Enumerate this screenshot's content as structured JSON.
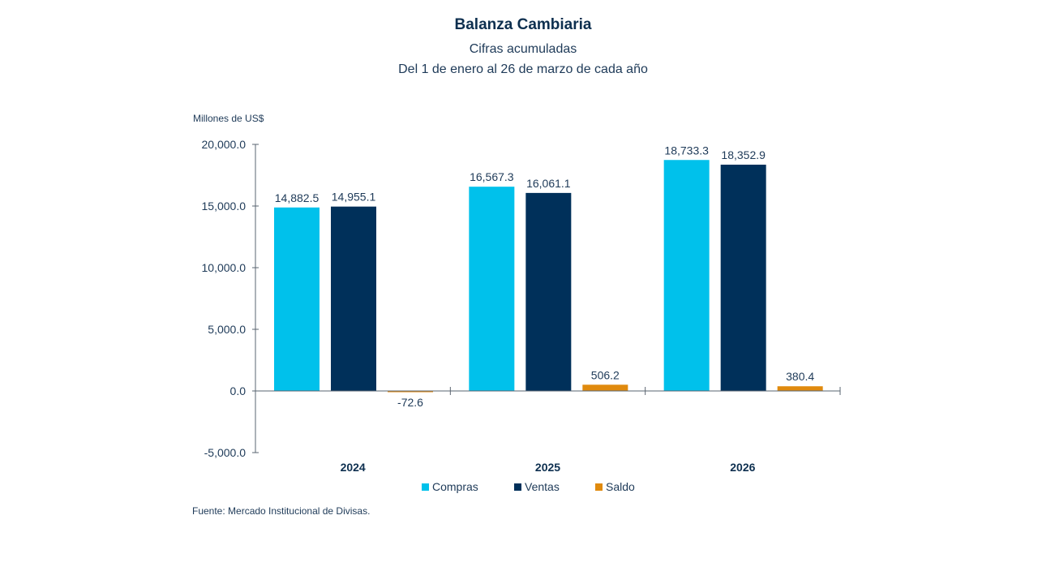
{
  "chart_data": {
    "type": "bar",
    "title": "Balanza Cambiaria",
    "subtitle": [
      "Cifras acumuladas",
      "Del 1 de enero al 26 de marzo de cada año"
    ],
    "ylabel": "Millones de US$",
    "xlabel": "",
    "categories": [
      "2024",
      "2025",
      "2026"
    ],
    "series": [
      {
        "name": "Compras",
        "color": "#00C1EB",
        "values": [
          14882.5,
          16567.3,
          18733.3
        ],
        "labels": [
          "14,882.5",
          "16,567.3",
          "18,733.3"
        ]
      },
      {
        "name": "Ventas",
        "color": "#00305A",
        "values": [
          14955.1,
          16061.1,
          18352.9
        ],
        "labels": [
          "14,955.1",
          "16,061.1",
          "18,352.9"
        ]
      },
      {
        "name": "Saldo",
        "color": "#E08A0E",
        "values": [
          -72.6,
          506.2,
          380.4
        ],
        "labels": [
          "-72.6",
          "506.2",
          "380.4"
        ]
      }
    ],
    "ylim": [
      -5000,
      20000
    ],
    "yticks": [
      20000,
      15000,
      10000,
      5000,
      0,
      -5000
    ],
    "ytick_labels": [
      "20,000.0",
      "15,000.0",
      "10,000.0",
      "5,000.0",
      "0.0",
      "-5,000.0"
    ],
    "grid": false,
    "legend_position": "bottom",
    "source": "Fuente: Mercado Institucional de Divisas."
  }
}
